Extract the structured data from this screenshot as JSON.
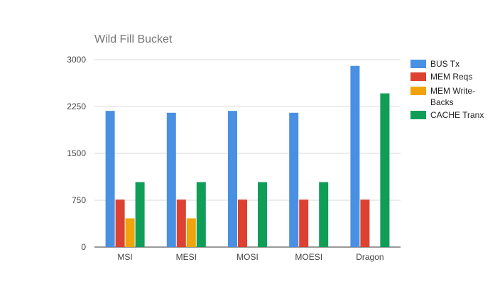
{
  "chart_data": {
    "type": "bar",
    "title": "Wild Fill Bucket",
    "xlabel": "",
    "ylabel": "",
    "categories": [
      "MSI",
      "MESI",
      "MOSI",
      "MOESI",
      "Dragon"
    ],
    "yticks": [
      "0",
      "750",
      "1500",
      "2250",
      "3000"
    ],
    "ylim": [
      0,
      3000
    ],
    "grid": true,
    "legend_position": "right",
    "series": [
      {
        "name": "BUS Tx",
        "color": "#4a90e2",
        "values": [
          2180,
          2150,
          2180,
          2150,
          2900
        ]
      },
      {
        "name": "MEM Reqs",
        "color": "#dd4132",
        "values": [
          760,
          760,
          760,
          760,
          760
        ]
      },
      {
        "name": "MEM Write-Backs",
        "legend_lines": [
          "MEM Write-",
          "Backs"
        ],
        "color": "#f0a30a",
        "values": [
          460,
          460,
          0,
          0,
          0
        ]
      },
      {
        "name": "CACHE Tranx",
        "color": "#109d58",
        "values": [
          1040,
          1040,
          1040,
          1040,
          2460
        ]
      }
    ]
  }
}
